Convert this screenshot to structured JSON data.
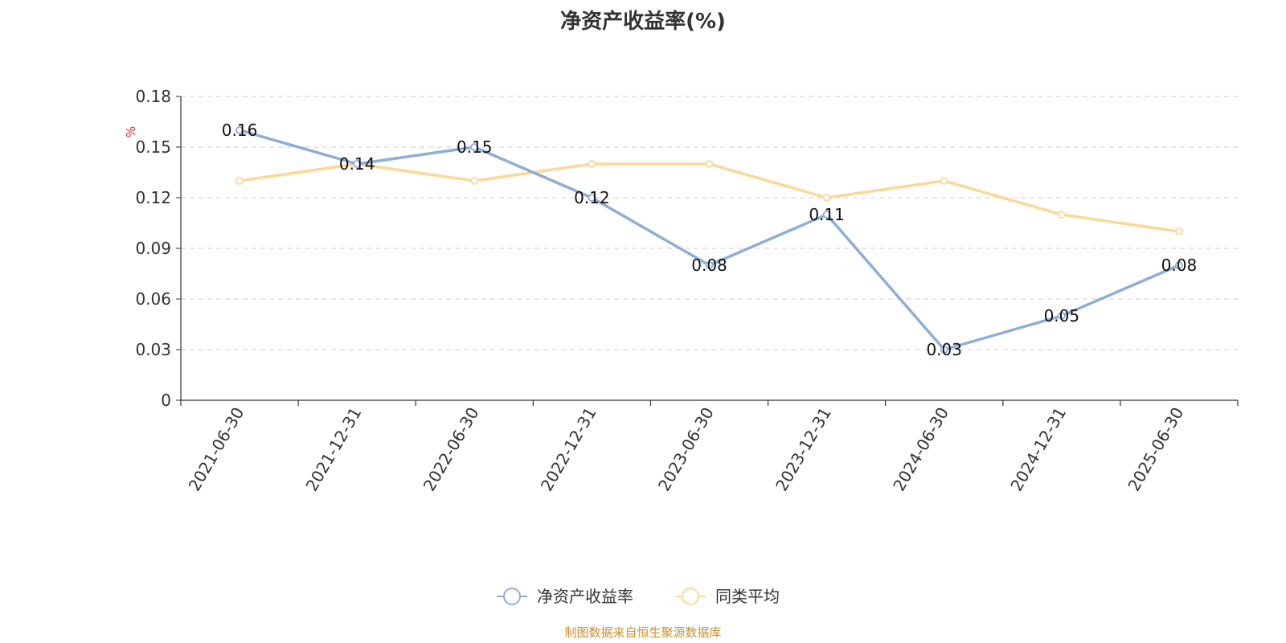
{
  "chart_data": {
    "type": "line",
    "title": "净资产收益率(%)",
    "ylabel": "%",
    "xlabel": "",
    "categories": [
      "2021-06-30",
      "2021-12-31",
      "2022-06-30",
      "2022-12-31",
      "2023-06-30",
      "2023-12-31",
      "2024-06-30",
      "2024-12-31",
      "2025-06-30"
    ],
    "ylim": [
      0,
      0.18
    ],
    "yticks": [
      "0",
      "0.03",
      "0.06",
      "0.09",
      "0.12",
      "0.15",
      "0.18"
    ],
    "grid": true,
    "legend_position": "bottom",
    "series": [
      {
        "name": "净资产收益率",
        "color": "#8eaed8",
        "values": [
          0.16,
          0.14,
          0.15,
          0.12,
          0.08,
          0.11,
          0.03,
          0.05,
          0.08
        ],
        "labels": [
          "0.16",
          "0.14",
          "0.15",
          "0.12",
          "0.08",
          "0.11",
          "0.03",
          "0.05",
          "0.08"
        ]
      },
      {
        "name": "同类平均",
        "color": "#fbd897",
        "values": [
          0.13,
          0.14,
          0.13,
          0.14,
          0.14,
          0.12,
          0.13,
          0.11,
          0.1
        ]
      }
    ]
  },
  "source_note": "制图数据来自恒生聚源数据库"
}
